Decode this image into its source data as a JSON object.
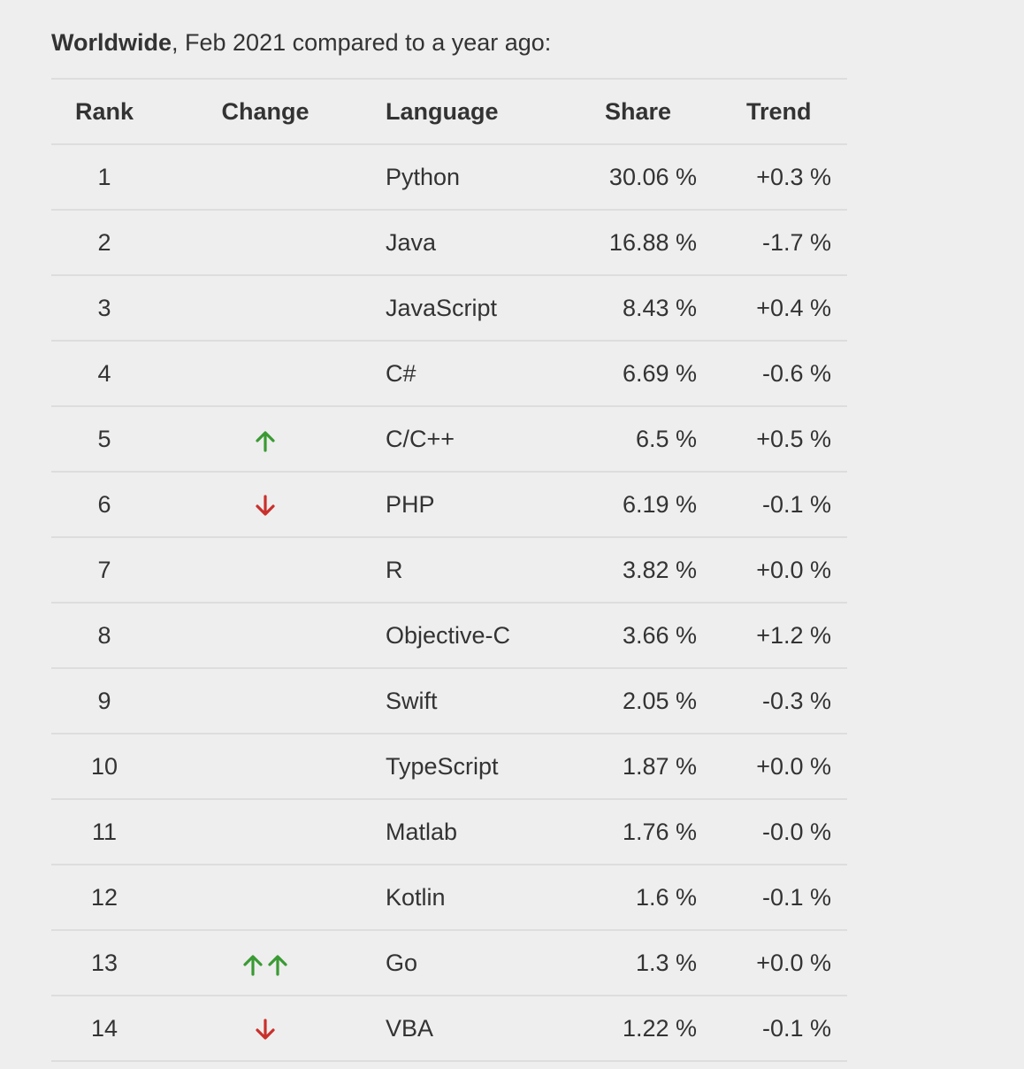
{
  "intro": {
    "bold": "Worldwide",
    "rest": ", Feb 2021 compared to a year ago:"
  },
  "headers": {
    "rank": "Rank",
    "change": "Change",
    "language": "Language",
    "share": "Share",
    "trend": "Trend"
  },
  "colors": {
    "up": "#3a9a33",
    "down": "#c9302c",
    "border": "#dddddd",
    "background": "#eeeeee"
  },
  "rows": [
    {
      "rank": "1",
      "change": "none",
      "language": "Python",
      "share": "30.06 %",
      "trend": "+0.3 %"
    },
    {
      "rank": "2",
      "change": "none",
      "language": "Java",
      "share": "16.88 %",
      "trend": "-1.7 %"
    },
    {
      "rank": "3",
      "change": "none",
      "language": "JavaScript",
      "share": "8.43 %",
      "trend": "+0.4 %"
    },
    {
      "rank": "4",
      "change": "none",
      "language": "C#",
      "share": "6.69 %",
      "trend": "-0.6 %"
    },
    {
      "rank": "5",
      "change": "up-arrow-icon",
      "language": "C/C++",
      "share": "6.5 %",
      "trend": "+0.5 %"
    },
    {
      "rank": "6",
      "change": "down-arrow-icon",
      "language": "PHP",
      "share": "6.19 %",
      "trend": "-0.1 %"
    },
    {
      "rank": "7",
      "change": "none",
      "language": "R",
      "share": "3.82 %",
      "trend": "+0.0 %"
    },
    {
      "rank": "8",
      "change": "none",
      "language": "Objective-C",
      "share": "3.66 %",
      "trend": "+1.2 %"
    },
    {
      "rank": "9",
      "change": "none",
      "language": "Swift",
      "share": "2.05 %",
      "trend": "-0.3 %"
    },
    {
      "rank": "10",
      "change": "none",
      "language": "TypeScript",
      "share": "1.87 %",
      "trend": "+0.0 %"
    },
    {
      "rank": "11",
      "change": "none",
      "language": "Matlab",
      "share": "1.76 %",
      "trend": "-0.0 %"
    },
    {
      "rank": "12",
      "change": "none",
      "language": "Kotlin",
      "share": "1.6 %",
      "trend": "-0.1 %"
    },
    {
      "rank": "13",
      "change": "double-up-arrow-icon",
      "language": "Go",
      "share": "1.3 %",
      "trend": "+0.0 %"
    },
    {
      "rank": "14",
      "change": "down-arrow-icon",
      "language": "VBA",
      "share": "1.22 %",
      "trend": "-0.1 %"
    }
  ]
}
